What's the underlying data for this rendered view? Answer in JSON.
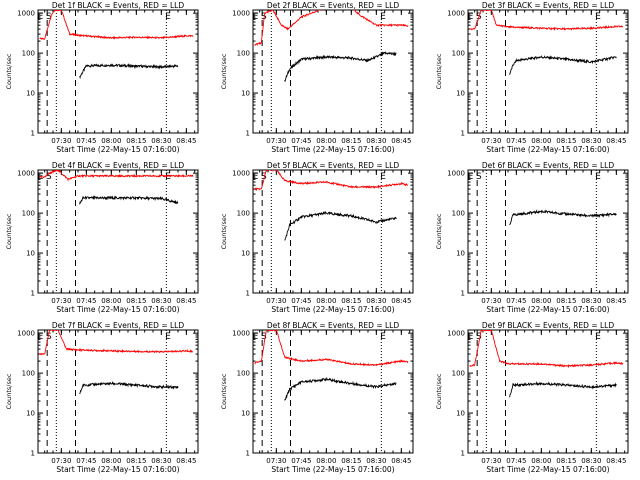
{
  "figure": {
    "colors": {
      "events": "#000000",
      "lld": "#ff0000",
      "axes": "#000000",
      "background": "#ffffff"
    }
  },
  "chart_data": [
    {
      "type": "line",
      "title": "Det 1f BLACK = Events, RED = LLD",
      "xlabel": "Start Time (22-May-15 07:16:00)",
      "ylabel": "Counts/sec",
      "xticks": [
        "07:30",
        "07:45",
        "08:00",
        "08:15",
        "08:30",
        "08:45"
      ],
      "yticks": [
        "1",
        "10",
        "100",
        "1000"
      ],
      "yscale": "log",
      "ylim": [
        1,
        1200
      ],
      "markers": [
        "E",
        "S",
        "E"
      ],
      "series": [
        {
          "name": "Events",
          "color": "#000000",
          "x": [
            "07:41",
            "07:45",
            "08:00",
            "08:15",
            "08:30",
            "08:40"
          ],
          "y": [
            25,
            48,
            50,
            47,
            45,
            48
          ]
        },
        {
          "name": "LLD",
          "color": "#ff0000",
          "x": [
            "07:17",
            "07:20",
            "07:24",
            "07:26",
            "07:30",
            "07:35",
            "07:40",
            "08:00",
            "08:15",
            "08:30",
            "08:45",
            "08:49"
          ],
          "y": [
            230,
            230,
            900,
            1200,
            1200,
            300,
            280,
            240,
            250,
            240,
            270,
            270
          ]
        }
      ]
    },
    {
      "type": "line",
      "title": "Det 2f BLACK = Events, RED = LLD",
      "xlabel": "Start Time (22-May-15 07:16:00)",
      "ylabel": "Counts/sec",
      "xticks": [
        "07:30",
        "07:45",
        "08:00",
        "08:15",
        "08:30",
        "08:45"
      ],
      "yticks": [
        "1",
        "10",
        "100",
        "1000"
      ],
      "yscale": "log",
      "ylim": [
        1,
        1200
      ],
      "markers": [
        "E",
        "S",
        "E"
      ],
      "series": [
        {
          "name": "Events",
          "color": "#000000",
          "x": [
            "07:35",
            "07:38",
            "07:45",
            "08:00",
            "08:15",
            "08:25",
            "08:35",
            "08:42"
          ],
          "y": [
            20,
            40,
            70,
            80,
            75,
            65,
            100,
            95
          ]
        },
        {
          "name": "LLD",
          "color": "#ff0000",
          "x": [
            "07:17",
            "07:21",
            "07:23",
            "07:28",
            "07:33",
            "07:37",
            "07:45",
            "08:00",
            "08:15",
            "08:20",
            "08:30",
            "08:45",
            "08:49"
          ],
          "y": [
            160,
            180,
            1000,
            1200,
            500,
            400,
            800,
            1400,
            1400,
            900,
            500,
            500,
            480
          ]
        }
      ]
    },
    {
      "type": "line",
      "title": "Det 3f BLACK = Events, RED = LLD",
      "xlabel": "Start Time (22-May-15 07:16:00)",
      "ylabel": "Counts/sec",
      "xticks": [
        "07:30",
        "07:45",
        "08:00",
        "08:15",
        "08:30",
        "08:45"
      ],
      "yticks": [
        "1",
        "10",
        "100",
        "1000"
      ],
      "yscale": "log",
      "ylim": [
        1,
        1200
      ],
      "markers": [
        "E",
        "S",
        "E"
      ],
      "series": [
        {
          "name": "Events",
          "color": "#000000",
          "x": [
            "07:41",
            "07:43",
            "07:45",
            "08:00",
            "08:15",
            "08:30",
            "08:45"
          ],
          "y": [
            30,
            50,
            65,
            80,
            70,
            60,
            80
          ]
        },
        {
          "name": "LLD",
          "color": "#ff0000",
          "x": [
            "07:17",
            "07:20",
            "07:24",
            "07:30",
            "07:33",
            "07:40",
            "08:00",
            "08:15",
            "08:30",
            "08:45",
            "08:49"
          ],
          "y": [
            400,
            400,
            1200,
            1200,
            500,
            450,
            420,
            400,
            420,
            460,
            460
          ]
        }
      ]
    },
    {
      "type": "line",
      "title": "Det 4f BLACK = Events, RED = LLD",
      "xlabel": "Start Time (22-May-15 07:16:00)",
      "ylabel": "Counts/sec",
      "xticks": [
        "07:30",
        "07:45",
        "08:00",
        "08:15",
        "08:30",
        "08:45"
      ],
      "yticks": [
        "1",
        "10",
        "100",
        "1000"
      ],
      "yscale": "log",
      "ylim": [
        1,
        1200
      ],
      "markers": [
        "E",
        "S",
        "E"
      ],
      "series": [
        {
          "name": "Events",
          "color": "#000000",
          "x": [
            "07:41",
            "07:43",
            "08:00",
            "08:15",
            "08:30",
            "08:40"
          ],
          "y": [
            170,
            240,
            240,
            240,
            230,
            180
          ]
        },
        {
          "name": "LLD",
          "color": "#ff0000",
          "x": [
            "07:17",
            "07:20",
            "07:23",
            "07:28",
            "07:34",
            "07:40",
            "08:00",
            "08:30",
            "08:49"
          ],
          "y": [
            800,
            800,
            1000,
            1200,
            700,
            850,
            850,
            850,
            850
          ]
        }
      ]
    },
    {
      "type": "line",
      "title": "Det 5f BLACK = Events, RED = LLD",
      "xlabel": "Start Time (22-May-15 07:16:00)",
      "ylabel": "Counts/sec",
      "xticks": [
        "07:30",
        "07:45",
        "08:00",
        "08:15",
        "08:30",
        "08:45"
      ],
      "yticks": [
        "1",
        "10",
        "100",
        "1000"
      ],
      "yscale": "log",
      "ylim": [
        1,
        1200
      ],
      "markers": [
        "E",
        "S",
        "E"
      ],
      "series": [
        {
          "name": "Events",
          "color": "#000000",
          "x": [
            "07:35",
            "07:38",
            "07:45",
            "08:00",
            "08:15",
            "08:30",
            "08:42"
          ],
          "y": [
            20,
            50,
            80,
            100,
            85,
            60,
            75
          ]
        },
        {
          "name": "LLD",
          "color": "#ff0000",
          "x": [
            "07:17",
            "07:21",
            "07:24",
            "07:30",
            "07:35",
            "07:45",
            "08:00",
            "08:15",
            "08:30",
            "08:45",
            "08:49"
          ],
          "y": [
            400,
            400,
            1200,
            1200,
            650,
            550,
            600,
            450,
            450,
            550,
            500
          ]
        }
      ]
    },
    {
      "type": "line",
      "title": "Det 6f BLACK = Events, RED = LLD",
      "xlabel": "Start Time (22-May-15 07:16:00)",
      "ylabel": "Counts/sec",
      "xticks": [
        "07:30",
        "07:45",
        "08:00",
        "08:15",
        "08:30",
        "08:45"
      ],
      "yticks": [
        "1",
        "10",
        "100",
        "1000"
      ],
      "yscale": "log",
      "ylim": [
        1,
        1200
      ],
      "markers": [
        "E",
        "S",
        "E"
      ],
      "series": [
        {
          "name": "Events",
          "color": "#000000",
          "x": [
            "07:41",
            "07:43",
            "08:00",
            "08:15",
            "08:30",
            "08:45"
          ],
          "y": [
            50,
            90,
            110,
            95,
            85,
            95
          ]
        }
      ]
    },
    {
      "type": "line",
      "title": "Det 7f BLACK = Events, RED = LLD",
      "xlabel": "Start Time (22-May-15 07:16:00)",
      "ylabel": "Counts/sec",
      "xticks": [
        "07:30",
        "07:45",
        "08:00",
        "08:15",
        "08:30",
        "08:45"
      ],
      "yticks": [
        "1",
        "10",
        "100",
        "1000"
      ],
      "yscale": "log",
      "ylim": [
        1,
        1200
      ],
      "markers": [
        "E",
        "S",
        "E"
      ],
      "series": [
        {
          "name": "Events",
          "color": "#000000",
          "x": [
            "07:41",
            "07:43",
            "08:00",
            "08:15",
            "08:30",
            "08:40"
          ],
          "y": [
            30,
            50,
            55,
            50,
            45,
            45
          ]
        },
        {
          "name": "LLD",
          "color": "#ff0000",
          "x": [
            "07:17",
            "07:20",
            "07:23",
            "07:28",
            "07:33",
            "07:40",
            "08:00",
            "08:15",
            "08:30",
            "08:45",
            "08:49"
          ],
          "y": [
            300,
            300,
            1200,
            1200,
            400,
            380,
            360,
            350,
            340,
            360,
            350
          ]
        }
      ]
    },
    {
      "type": "line",
      "title": "Det 8f BLACK = Events, RED = LLD",
      "xlabel": "Start Time (22-May-15 07:16:00)",
      "ylabel": "Counts/sec",
      "xticks": [
        "07:30",
        "07:45",
        "08:00",
        "08:15",
        "08:30",
        "08:45"
      ],
      "yticks": [
        "1",
        "10",
        "100",
        "1000"
      ],
      "yscale": "log",
      "ylim": [
        1,
        1200
      ],
      "markers": [
        "E",
        "S",
        "E"
      ],
      "series": [
        {
          "name": "Events",
          "color": "#000000",
          "x": [
            "07:35",
            "07:38",
            "07:45",
            "08:00",
            "08:15",
            "08:30",
            "08:42"
          ],
          "y": [
            20,
            40,
            60,
            70,
            55,
            45,
            55
          ]
        },
        {
          "name": "LLD",
          "color": "#ff0000",
          "x": [
            "07:17",
            "07:21",
            "07:24",
            "07:30",
            "07:35",
            "07:45",
            "08:00",
            "08:15",
            "08:30",
            "08:45",
            "08:49"
          ],
          "y": [
            180,
            200,
            1200,
            1200,
            250,
            200,
            220,
            170,
            160,
            200,
            190
          ]
        }
      ]
    },
    {
      "type": "line",
      "title": "Det 9f BLACK = Events, RED = LLD",
      "xlabel": "Start Time (22-May-15 07:16:00)",
      "ylabel": "Counts/sec",
      "xticks": [
        "07:30",
        "07:45",
        "08:00",
        "08:15",
        "08:30",
        "08:45"
      ],
      "yticks": [
        "1",
        "10",
        "100",
        "1000"
      ],
      "yscale": "log",
      "ylim": [
        1,
        1200
      ],
      "markers": [
        "E",
        "S",
        "E"
      ],
      "series": [
        {
          "name": "Events",
          "color": "#000000",
          "x": [
            "07:41",
            "07:43",
            "08:00",
            "08:15",
            "08:30",
            "08:45"
          ],
          "y": [
            25,
            50,
            55,
            50,
            45,
            50
          ]
        },
        {
          "name": "LLD",
          "color": "#ff0000",
          "x": [
            "07:17",
            "07:20",
            "07:24",
            "07:30",
            "07:35",
            "07:40",
            "08:00",
            "08:15",
            "08:30",
            "08:45",
            "08:49"
          ],
          "y": [
            150,
            160,
            1200,
            1200,
            200,
            170,
            170,
            150,
            160,
            180,
            170
          ]
        }
      ]
    }
  ]
}
